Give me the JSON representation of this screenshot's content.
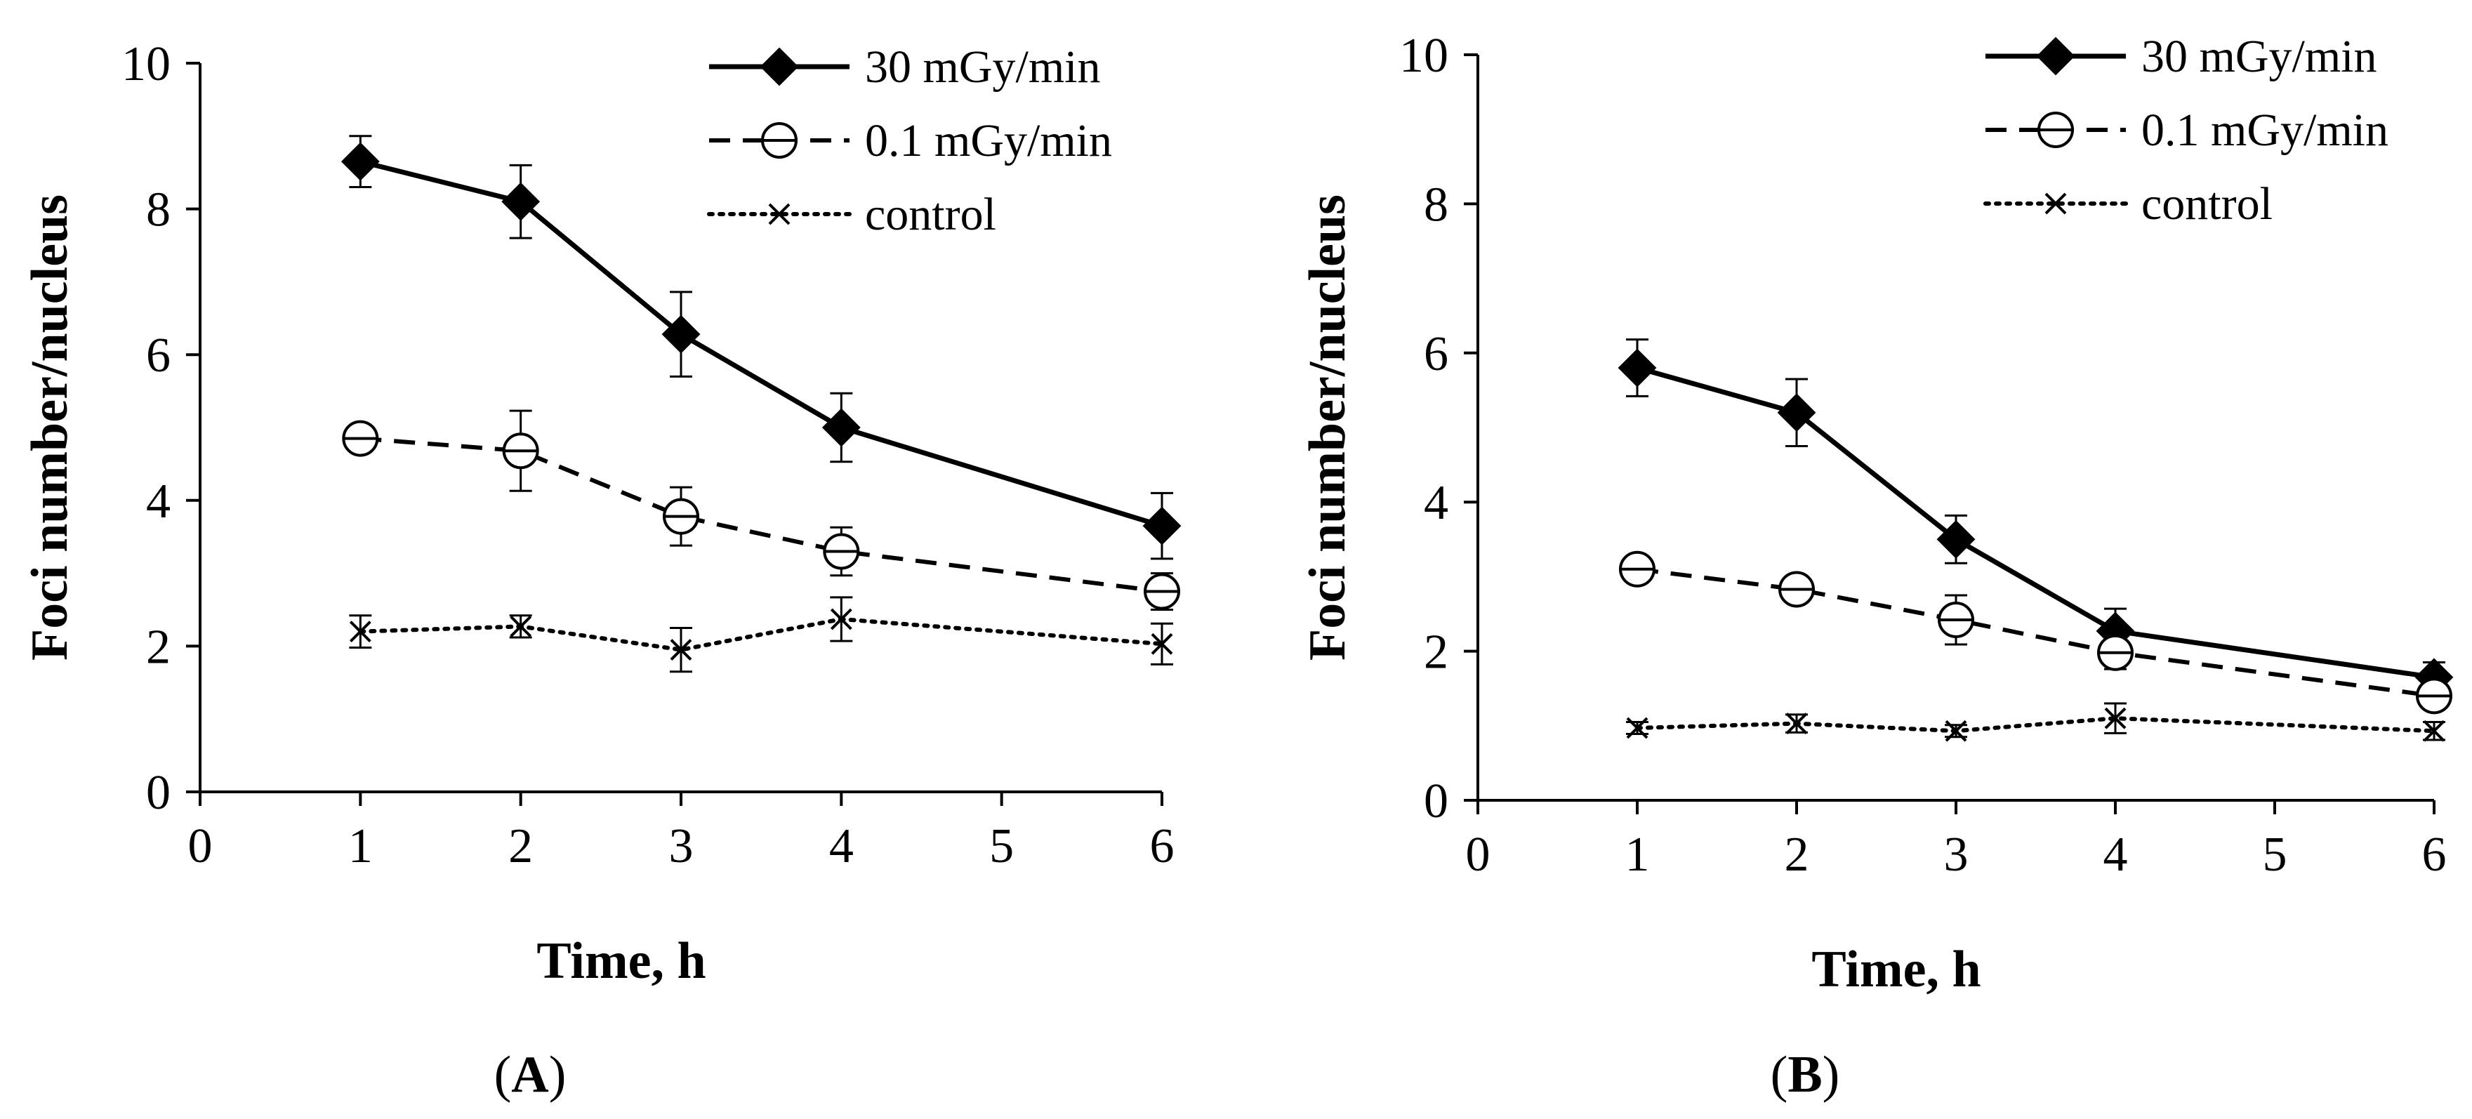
{
  "chart_data": [
    {
      "type": "line",
      "panel_label": "A",
      "xlabel": "Time, h",
      "ylabel": "Foci number/nucleus",
      "xlim": [
        0,
        6
      ],
      "ylim": [
        0,
        10
      ],
      "x_ticks": [
        "0",
        "1",
        "2",
        "3",
        "4",
        "5",
        "6"
      ],
      "y_ticks": [
        "0",
        "2",
        "4",
        "6",
        "8",
        "10"
      ],
      "x": [
        1,
        2,
        3,
        4,
        6
      ],
      "series": [
        {
          "name": "30 mGy/min",
          "marker": "diamond",
          "line": "solid",
          "values": [
            8.65,
            8.1,
            6.28,
            5.0,
            3.65
          ],
          "errors": [
            0.35,
            0.5,
            0.58,
            0.47,
            0.45
          ]
        },
        {
          "name": "0.1 mGy/min",
          "marker": "circle-dash",
          "line": "dashed",
          "values": [
            4.85,
            4.68,
            3.78,
            3.3,
            2.75
          ],
          "errors": [
            0.1,
            0.55,
            0.4,
            0.33,
            0.25
          ]
        },
        {
          "name": "control",
          "marker": "x",
          "line": "dotted",
          "values": [
            2.2,
            2.27,
            1.95,
            2.37,
            2.03
          ],
          "errors": [
            0.22,
            0.15,
            0.3,
            0.3,
            0.28
          ]
        }
      ],
      "legend": [
        "30 mGy/min",
        "0.1 mGy/min",
        "control"
      ],
      "legend_position": "top-right"
    },
    {
      "type": "line",
      "panel_label": "B",
      "xlabel": "Time, h",
      "ylabel": "Foci number/nucleus",
      "xlim": [
        0,
        6
      ],
      "ylim": [
        0,
        10
      ],
      "x_ticks": [
        "0",
        "1",
        "2",
        "3",
        "4",
        "5",
        "6"
      ],
      "y_ticks": [
        "0",
        "2",
        "4",
        "6",
        "8",
        "10"
      ],
      "x": [
        1,
        2,
        3,
        4,
        6
      ],
      "series": [
        {
          "name": "30 mGy/min",
          "marker": "diamond",
          "line": "solid",
          "values": [
            5.8,
            5.2,
            3.5,
            2.27,
            1.65
          ],
          "errors": [
            0.38,
            0.45,
            0.32,
            0.3,
            0.2
          ]
        },
        {
          "name": "0.1 mGy/min",
          "marker": "circle-dash",
          "line": "dashed",
          "values": [
            3.1,
            2.83,
            2.42,
            1.98,
            1.4
          ],
          "errors": [
            0.15,
            0.12,
            0.33,
            0.22,
            0.15
          ]
        },
        {
          "name": "control",
          "marker": "x",
          "line": "dotted",
          "values": [
            0.97,
            1.03,
            0.93,
            1.1,
            0.93
          ],
          "errors": [
            0.08,
            0.12,
            0.08,
            0.2,
            0.12
          ]
        }
      ],
      "legend": [
        "30 mGy/min",
        "0.1 mGy/min",
        "control"
      ],
      "legend_position": "top-right"
    }
  ]
}
